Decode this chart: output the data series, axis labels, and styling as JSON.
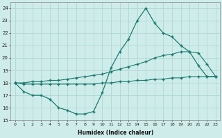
{
  "xlabel": "Humidex (Indice chaleur)",
  "ylabel": "",
  "x": [
    0,
    1,
    2,
    3,
    4,
    5,
    6,
    7,
    8,
    9,
    10,
    11,
    12,
    13,
    14,
    15,
    16,
    17,
    18,
    19,
    20,
    21,
    22,
    23
  ],
  "y_main": [
    18.0,
    17.3,
    17.0,
    17.0,
    16.7,
    16.0,
    15.8,
    15.5,
    15.5,
    15.7,
    17.2,
    19.2,
    20.5,
    21.5,
    23.0,
    24.0,
    22.8,
    22.0,
    21.7,
    21.0,
    20.5,
    19.4,
    18.5,
    18.5
  ],
  "y_upper": [
    18.0,
    18.0,
    18.1,
    18.1,
    18.2,
    18.2,
    18.3,
    18.4,
    18.5,
    18.6,
    18.7,
    18.9,
    19.1,
    19.3,
    19.5,
    19.7,
    20.0,
    20.2,
    20.3,
    20.5,
    20.5,
    20.4,
    19.5,
    18.5
  ],
  "y_lower": [
    18.0,
    17.9,
    17.9,
    17.9,
    17.9,
    17.9,
    17.9,
    17.9,
    17.9,
    17.9,
    18.0,
    18.0,
    18.1,
    18.1,
    18.2,
    18.2,
    18.3,
    18.3,
    18.4,
    18.4,
    18.5,
    18.5,
    18.5,
    18.5
  ],
  "line_color": "#1a7a6e",
  "bg_color": "#ceecea",
  "grid_color": "#aad4d0",
  "xlim": [
    -0.5,
    23.5
  ],
  "ylim": [
    15,
    24.5
  ],
  "yticks": [
    15,
    16,
    17,
    18,
    19,
    20,
    21,
    22,
    23,
    24
  ],
  "xticks": [
    0,
    1,
    2,
    3,
    4,
    5,
    6,
    7,
    8,
    9,
    10,
    11,
    12,
    13,
    14,
    15,
    16,
    17,
    18,
    19,
    20,
    21,
    22,
    23
  ]
}
